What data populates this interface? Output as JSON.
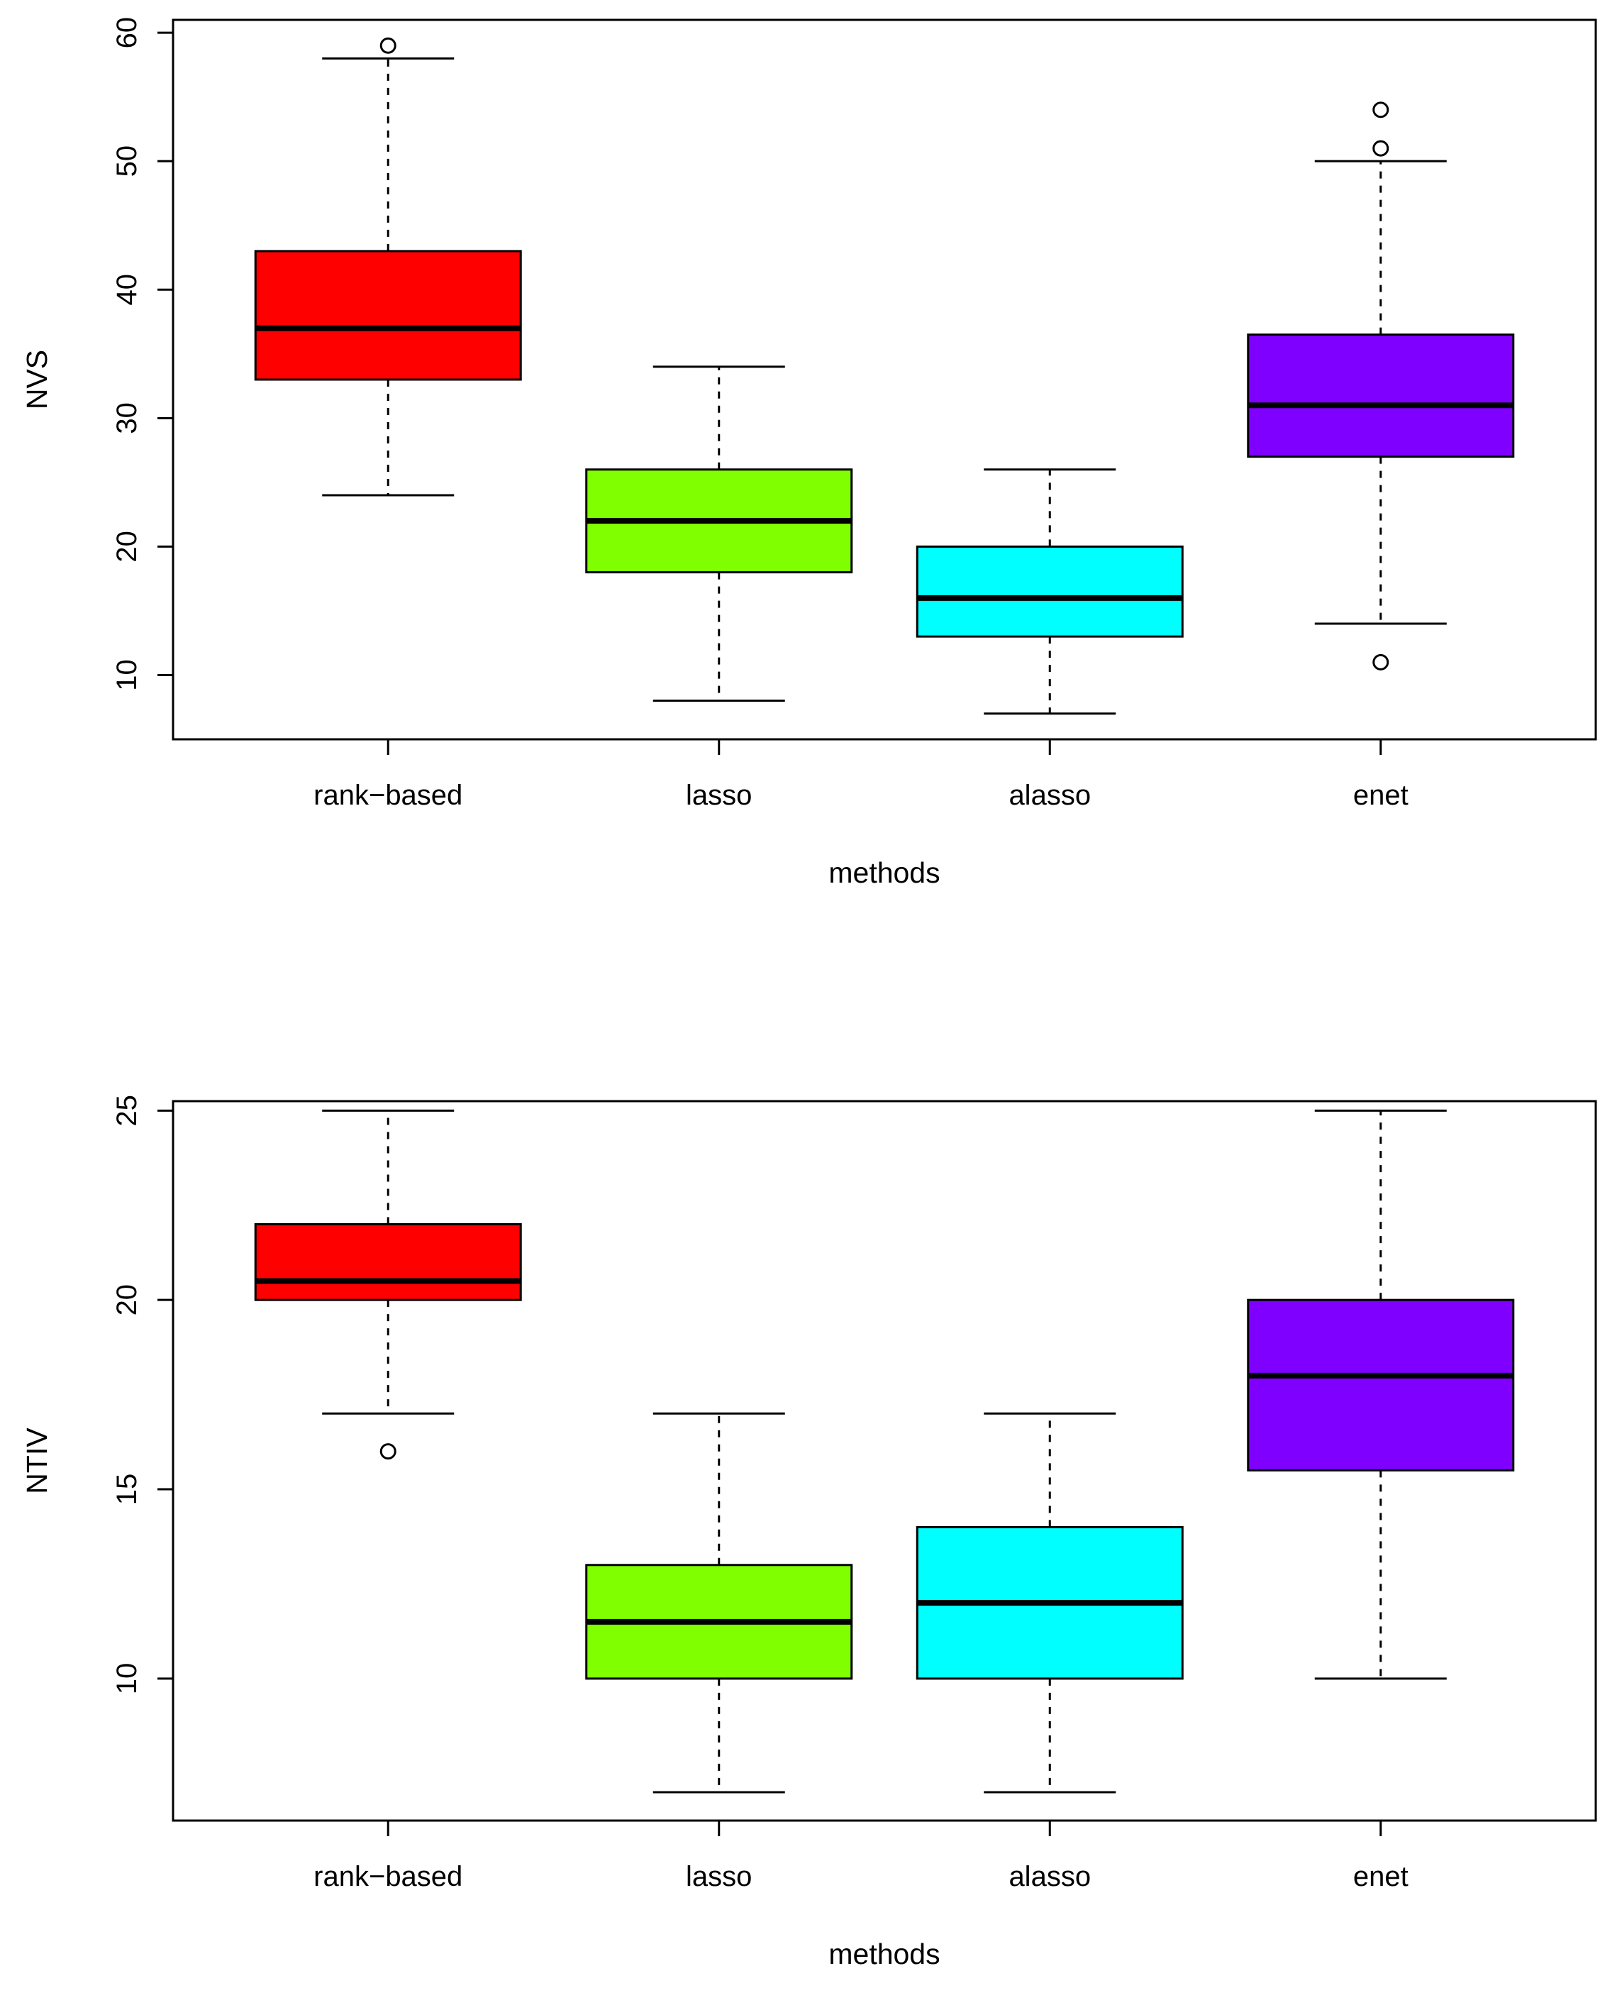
{
  "chart_data": [
    {
      "type": "boxplot",
      "xlabel": "methods",
      "ylabel": "NVS",
      "ylim": [
        5,
        61
      ],
      "y_ticks": [
        10,
        20,
        30,
        40,
        50,
        60
      ],
      "y_tick_labels": [
        "10",
        "20",
        "30",
        "40",
        "50",
        "60"
      ],
      "categories": [
        "rank−based",
        "lasso",
        "alasso",
        "enet"
      ],
      "series": [
        {
          "name": "rank−based",
          "color": "#FF0000",
          "whisker_low": 24,
          "q1": 33,
          "median": 37,
          "q3": 43,
          "whisker_high": 58,
          "outliers": [
            59
          ]
        },
        {
          "name": "lasso",
          "color": "#80FF00",
          "whisker_low": 8,
          "q1": 18,
          "median": 22,
          "q3": 26,
          "whisker_high": 34,
          "outliers": []
        },
        {
          "name": "alasso",
          "color": "#00FFFF",
          "whisker_low": 7,
          "q1": 13,
          "median": 16,
          "q3": 20,
          "whisker_high": 26,
          "outliers": []
        },
        {
          "name": "enet",
          "color": "#8000FF",
          "whisker_low": 14,
          "q1": 27,
          "median": 31,
          "q3": 36.5,
          "whisker_high": 50,
          "outliers": [
            11,
            51,
            54
          ]
        }
      ]
    },
    {
      "type": "boxplot",
      "xlabel": "methods",
      "ylabel": "NTIV",
      "ylim": [
        6.25,
        25.25
      ],
      "y_ticks": [
        10,
        15,
        20,
        25
      ],
      "y_tick_labels": [
        "10",
        "15",
        "20",
        "25"
      ],
      "categories": [
        "rank−based",
        "lasso",
        "alasso",
        "enet"
      ],
      "series": [
        {
          "name": "rank−based",
          "color": "#FF0000",
          "whisker_low": 17,
          "q1": 20,
          "median": 20.5,
          "q3": 22,
          "whisker_high": 25,
          "outliers": [
            16
          ]
        },
        {
          "name": "lasso",
          "color": "#80FF00",
          "whisker_low": 7,
          "q1": 10,
          "median": 11.5,
          "q3": 13,
          "whisker_high": 17,
          "outliers": []
        },
        {
          "name": "alasso",
          "color": "#00FFFF",
          "whisker_low": 7,
          "q1": 10,
          "median": 12,
          "q3": 14,
          "whisker_high": 17,
          "outliers": []
        },
        {
          "name": "enet",
          "color": "#8000FF",
          "whisker_low": 10,
          "q1": 15.5,
          "median": 18,
          "q3": 20,
          "whisker_high": 25,
          "outliers": []
        }
      ]
    }
  ]
}
